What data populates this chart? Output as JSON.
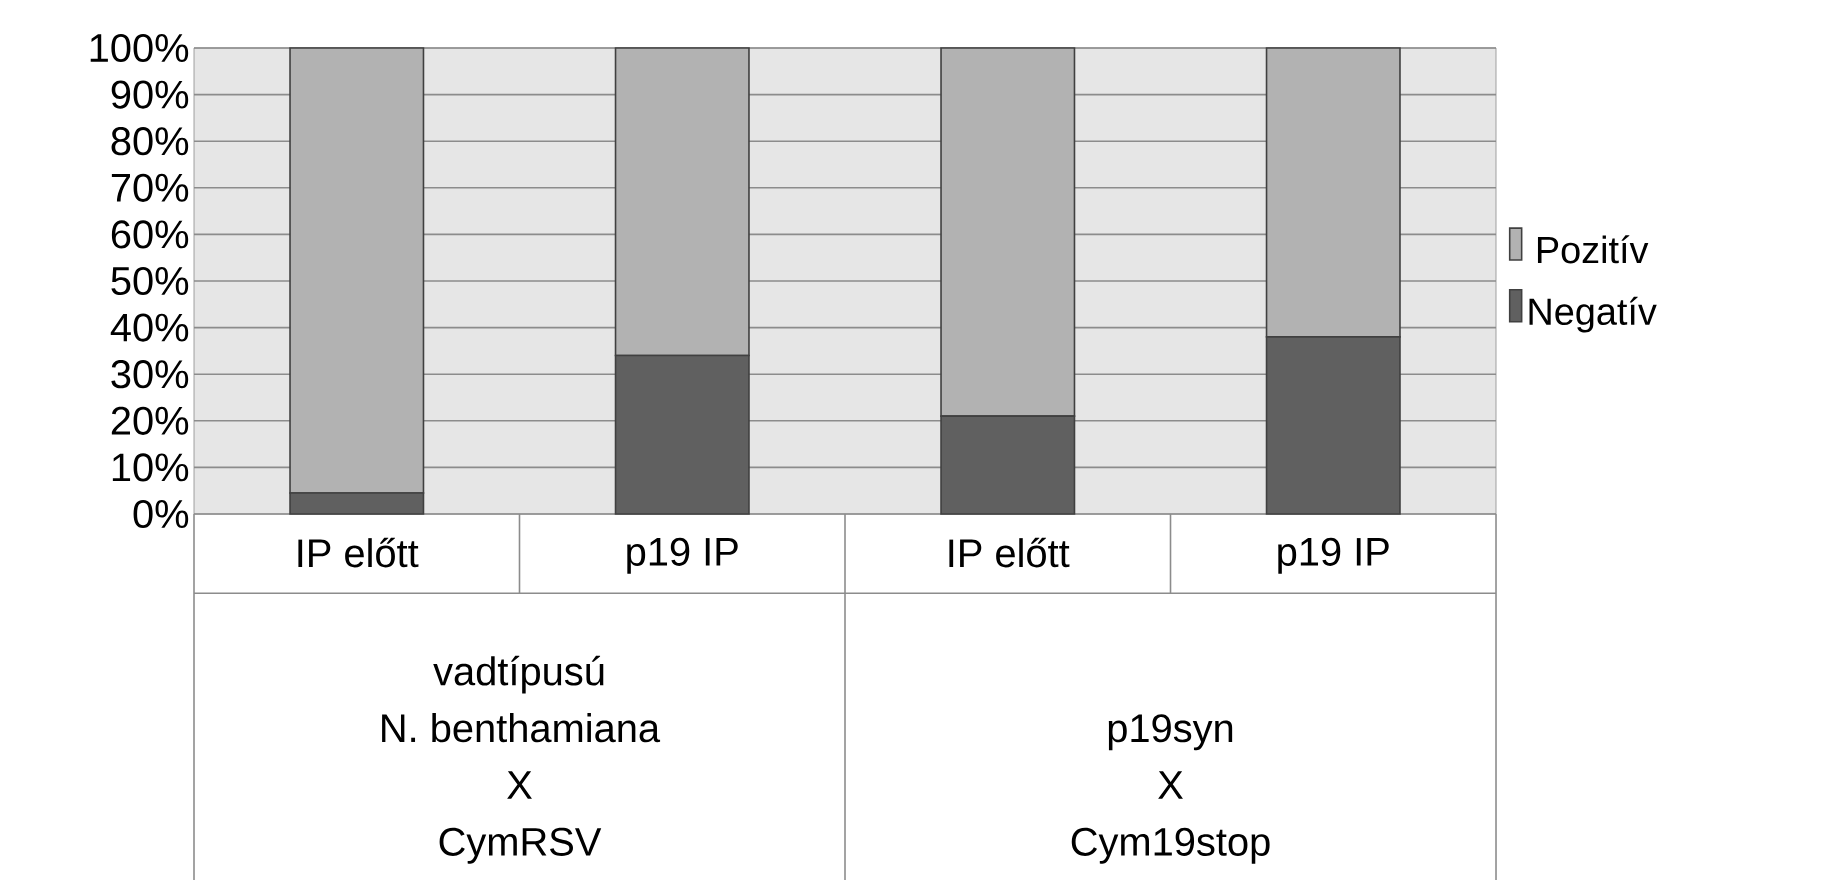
{
  "chart_data": {
    "type": "bar",
    "stacked": true,
    "categories": [
      "IP előtt",
      "p19 IP",
      "IP előtt",
      "p19 IP"
    ],
    "series": [
      {
        "name": "Negatív",
        "color": "#606060",
        "values": [
          4.5,
          34,
          21,
          38
        ]
      },
      {
        "name": "Pozitív",
        "color": "#b2b2b2",
        "values": [
          95.5,
          66,
          79,
          62
        ]
      }
    ],
    "ylim": [
      0,
      100
    ],
    "yticks": [
      {
        "value": 0,
        "label": "0%"
      },
      {
        "value": 10,
        "label": "10%"
      },
      {
        "value": 20,
        "label": "20%"
      },
      {
        "value": 30,
        "label": "30%"
      },
      {
        "value": 40,
        "label": "40%"
      },
      {
        "value": 50,
        "label": "50%"
      },
      {
        "value": 60,
        "label": "60%"
      },
      {
        "value": 70,
        "label": "70%"
      },
      {
        "value": 80,
        "label": "80%"
      },
      {
        "value": 90,
        "label": "90%"
      },
      {
        "value": 100,
        "label": "100%"
      }
    ],
    "grid": "y",
    "legend": "right",
    "annotations": [
      "vadtípusú",
      "N. benthamiana",
      "X",
      "CymRSV",
      "p19syn",
      "X",
      "Cym19stop"
    ]
  }
}
